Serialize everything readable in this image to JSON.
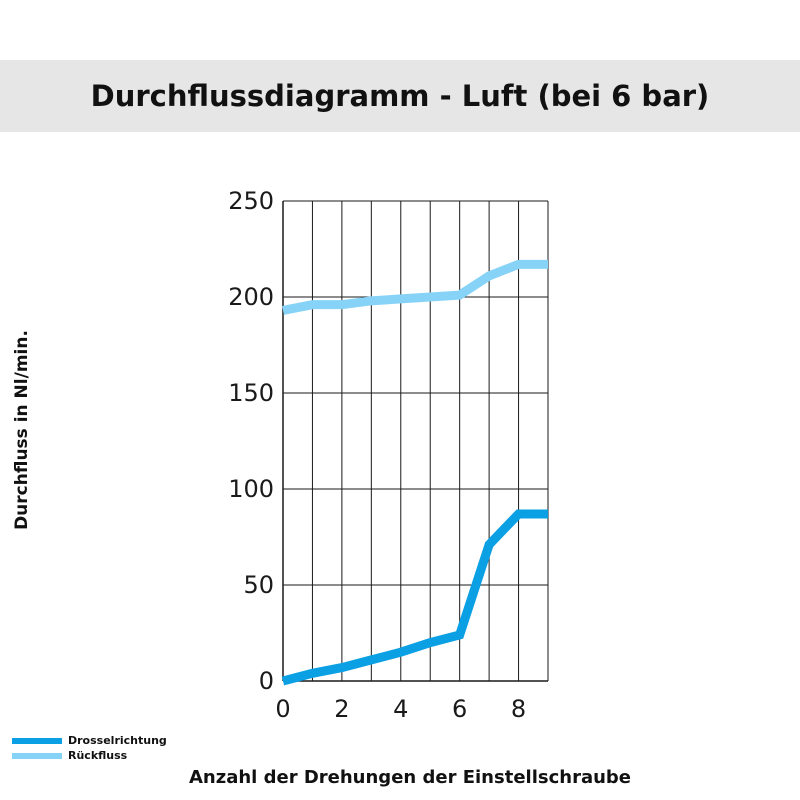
{
  "chart_data": {
    "type": "line",
    "title": "Durchflussdiagramm - Luft (bei 6 bar)",
    "xlabel": "Anzahl der Drehungen der Einstellschraube",
    "ylabel": "Durchfluss in Nl/min.",
    "x": [
      0,
      1,
      2,
      3,
      4,
      5,
      6,
      7,
      8,
      9
    ],
    "xlim": [
      0,
      9
    ],
    "ylim": [
      0,
      250
    ],
    "xticks": [
      "0",
      "2",
      "4",
      "6",
      "8"
    ],
    "yticks": [
      "0",
      "50",
      "100",
      "150",
      "200",
      "250"
    ],
    "grid": true,
    "legend_position": "bottom-left",
    "series": [
      {
        "name": "Drosselrichtung",
        "color": "#0aa0e3",
        "values": [
          0,
          4,
          7,
          11,
          15,
          20,
          24,
          71,
          87,
          87
        ]
      },
      {
        "name": "Rückfluss",
        "color": "#86d3f7",
        "values": [
          193,
          196,
          196,
          198,
          199,
          200,
          201,
          211,
          217,
          217
        ]
      }
    ]
  }
}
